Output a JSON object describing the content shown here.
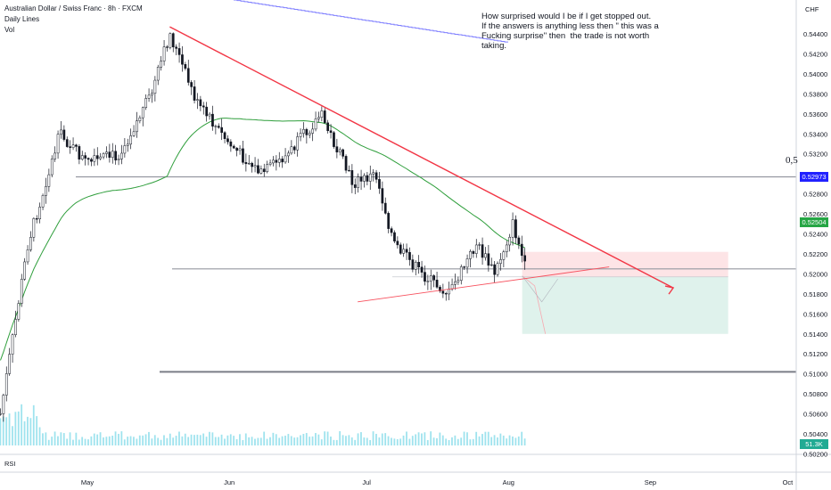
{
  "header": {
    "symbol": "Australian Dollar / Swiss Franc · 8h · FXCM",
    "indicator_1": "Daily Lines",
    "indicator_2": "Vol"
  },
  "note": {
    "lines": [
      "How surprised would I be if I get stopped out.",
      "If the answers is anything less then \" this was a",
      "Fucking surprise\" then  the trade is not worth",
      "taking."
    ]
  },
  "currency": "CHF",
  "fib_label": "0,5",
  "rsi_label": "RSI",
  "price_tags": {
    "level": {
      "text": "0.52973",
      "color": "#2121ff"
    },
    "last": {
      "text": "0.52504",
      "color": "#26a645"
    },
    "volume": {
      "text": "51.3K",
      "color": "#22ab94"
    }
  },
  "colors": {
    "candles": "#131722",
    "ma_line": "#2e9e3b",
    "upper_line": "#7f7fff",
    "trendline_down": "#f23645",
    "trendline_up": "#f7525f",
    "volume": "#9fe3ee",
    "stop_zone": "#fde4e6",
    "target_zone": "#dff2ec",
    "horizontal_level": "#9598a1"
  },
  "chart_data": {
    "type": "candlestick",
    "title": "Australian Dollar / Swiss Franc · 8h · FXCM",
    "y_unit": "CHF",
    "ylim": [
      0.501,
      0.547
    ],
    "y_ticks": [
      "0.54400",
      "0.54200",
      "0.54000",
      "0.53800",
      "0.53600",
      "0.53400",
      "0.53200",
      "0.53000",
      "0.52800",
      "0.52600",
      "0.52400",
      "0.52200",
      "0.52000",
      "0.51800",
      "0.51600",
      "0.51400",
      "0.51200",
      "0.51000",
      "0.50800",
      "0.50600",
      "0.50400",
      "0.50200"
    ],
    "x_ticks": [
      "May",
      "Jun",
      "Jul",
      "Aug",
      "Sep",
      "Oct"
    ],
    "price_path": [
      {
        "date": "2021-04-12",
        "close": 0.506
      },
      {
        "date": "2021-04-18",
        "close": 0.523
      },
      {
        "date": "2021-04-25",
        "close": 0.534
      },
      {
        "date": "2021-05-01",
        "close": 0.531
      },
      {
        "date": "2021-05-08",
        "close": 0.532
      },
      {
        "date": "2021-05-15",
        "close": 0.538
      },
      {
        "date": "2021-05-19",
        "close": 0.544
      },
      {
        "date": "2021-05-25",
        "close": 0.537
      },
      {
        "date": "2021-06-01",
        "close": 0.533
      },
      {
        "date": "2021-06-08",
        "close": 0.53
      },
      {
        "date": "2021-06-14",
        "close": 0.532
      },
      {
        "date": "2021-06-21",
        "close": 0.536
      },
      {
        "date": "2021-06-28",
        "close": 0.529
      },
      {
        "date": "2021-07-03",
        "close": 0.53
      },
      {
        "date": "2021-07-07",
        "close": 0.523
      },
      {
        "date": "2021-07-13",
        "close": 0.52
      },
      {
        "date": "2021-07-19",
        "close": 0.518
      },
      {
        "date": "2021-07-25",
        "close": 0.523
      },
      {
        "date": "2021-07-29",
        "close": 0.52
      },
      {
        "date": "2021-08-02",
        "close": 0.525
      },
      {
        "date": "2021-08-05",
        "close": 0.52
      }
    ],
    "horizontal_levels": [
      0.5297,
      0.5205,
      0.5102
    ],
    "fib_level_label": "0,5",
    "downtrend_line": {
      "from": {
        "date": "2021-05-19",
        "price": 0.5447
      },
      "to": {
        "date": "2021-09-06",
        "price": 0.5186
      }
    },
    "uptrend_line": {
      "from": {
        "date": "2021-07-01",
        "price": 0.5172
      },
      "to": {
        "date": "2021-08-23",
        "price": 0.5207
      }
    },
    "position": {
      "entry": 0.5197,
      "stop": 0.5222,
      "target": 0.514,
      "from": "2021-08-04",
      "to": "2021-09-18"
    },
    "last_price": 0.52504,
    "volume_last": "51.3K"
  }
}
